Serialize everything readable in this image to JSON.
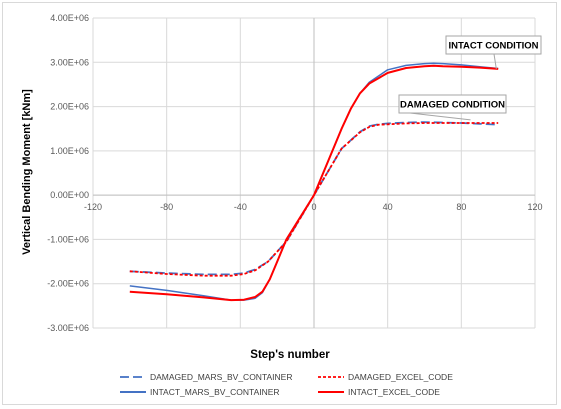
{
  "chart_data": {
    "type": "line",
    "title": "",
    "xlabel": "Step's number",
    "ylabel": "Vertical Bending Moment [kNm]",
    "xlim": [
      -120,
      120
    ],
    "ylim": [
      -3000000,
      4000000
    ],
    "x_ticks": [
      "-120",
      "-80",
      "-40",
      "0",
      "40",
      "80",
      "120"
    ],
    "y_ticks": [
      "-3.00E+06",
      "-2.00E+06",
      "-1.00E+06",
      "0.00E+00",
      "1.00E+06",
      "2.00E+06",
      "3.00E+06",
      "4.00E+06"
    ],
    "x_tick_values": [
      -120,
      -80,
      -40,
      0,
      40,
      80,
      120
    ],
    "y_tick_values": [
      -3000000,
      -2000000,
      -1000000,
      0,
      1000000,
      2000000,
      3000000,
      4000000
    ],
    "grid": "both",
    "legend_position": "bottom",
    "annotations": [
      {
        "text": "INTACT CONDITION",
        "x": 99,
        "y": 2850000
      },
      {
        "text": "DAMAGED CONDITION",
        "x": 85,
        "y": 1700000
      }
    ],
    "series": [
      {
        "name": "DAMAGED_MARS_BV_CONTAINER",
        "color": "#4472c4",
        "dash": "long-dash",
        "x": [
          -100,
          -80,
          -60,
          -45,
          -38,
          -32,
          -25,
          -15,
          0,
          15,
          25,
          30,
          35,
          40,
          50,
          60,
          70,
          80,
          90,
          100
        ],
        "y": [
          -1720000,
          -1760000,
          -1790000,
          -1790000,
          -1760000,
          -1680000,
          -1500000,
          -1050000,
          0,
          1050000,
          1430000,
          1560000,
          1600000,
          1620000,
          1640000,
          1650000,
          1640000,
          1630000,
          1610000,
          1590000
        ]
      },
      {
        "name": "DAMAGED_EXCEL_CODE",
        "color": "#ff0000",
        "dash": "short-dash",
        "x": [
          -100,
          -80,
          -60,
          -45,
          -38,
          -32,
          -25,
          -15,
          0,
          15,
          25,
          30,
          35,
          40,
          50,
          60,
          70,
          80,
          90,
          100
        ],
        "y": [
          -1720000,
          -1780000,
          -1820000,
          -1820000,
          -1780000,
          -1700000,
          -1500000,
          -1050000,
          0,
          1050000,
          1420000,
          1540000,
          1590000,
          1600000,
          1620000,
          1630000,
          1630000,
          1630000,
          1630000,
          1630000
        ]
      },
      {
        "name": "INTACT_MARS_BV_CONTAINER",
        "color": "#4472c4",
        "dash": "solid",
        "x": [
          -100,
          -80,
          -60,
          -45,
          -38,
          -32,
          -28,
          -24,
          -20,
          -15,
          0,
          15,
          20,
          25,
          30,
          40,
          50,
          60,
          65,
          70,
          80,
          90,
          100
        ],
        "y": [
          -2050000,
          -2150000,
          -2270000,
          -2370000,
          -2370000,
          -2330000,
          -2200000,
          -1900000,
          -1500000,
          -1000000,
          0,
          1500000,
          1950000,
          2300000,
          2550000,
          2830000,
          2930000,
          2970000,
          2980000,
          2970000,
          2940000,
          2900000,
          2860000
        ]
      },
      {
        "name": "INTACT_EXCEL_CODE",
        "color": "#ff0000",
        "dash": "solid",
        "x": [
          -100,
          -80,
          -60,
          -45,
          -38,
          -32,
          -28,
          -24,
          -20,
          -15,
          0,
          15,
          20,
          25,
          30,
          40,
          50,
          60,
          65,
          70,
          80,
          90,
          100
        ],
        "y": [
          -2180000,
          -2240000,
          -2310000,
          -2370000,
          -2360000,
          -2300000,
          -2180000,
          -1900000,
          -1500000,
          -1000000,
          0,
          1500000,
          1950000,
          2300000,
          2520000,
          2760000,
          2870000,
          2910000,
          2920000,
          2910000,
          2900000,
          2880000,
          2850000
        ]
      }
    ]
  }
}
